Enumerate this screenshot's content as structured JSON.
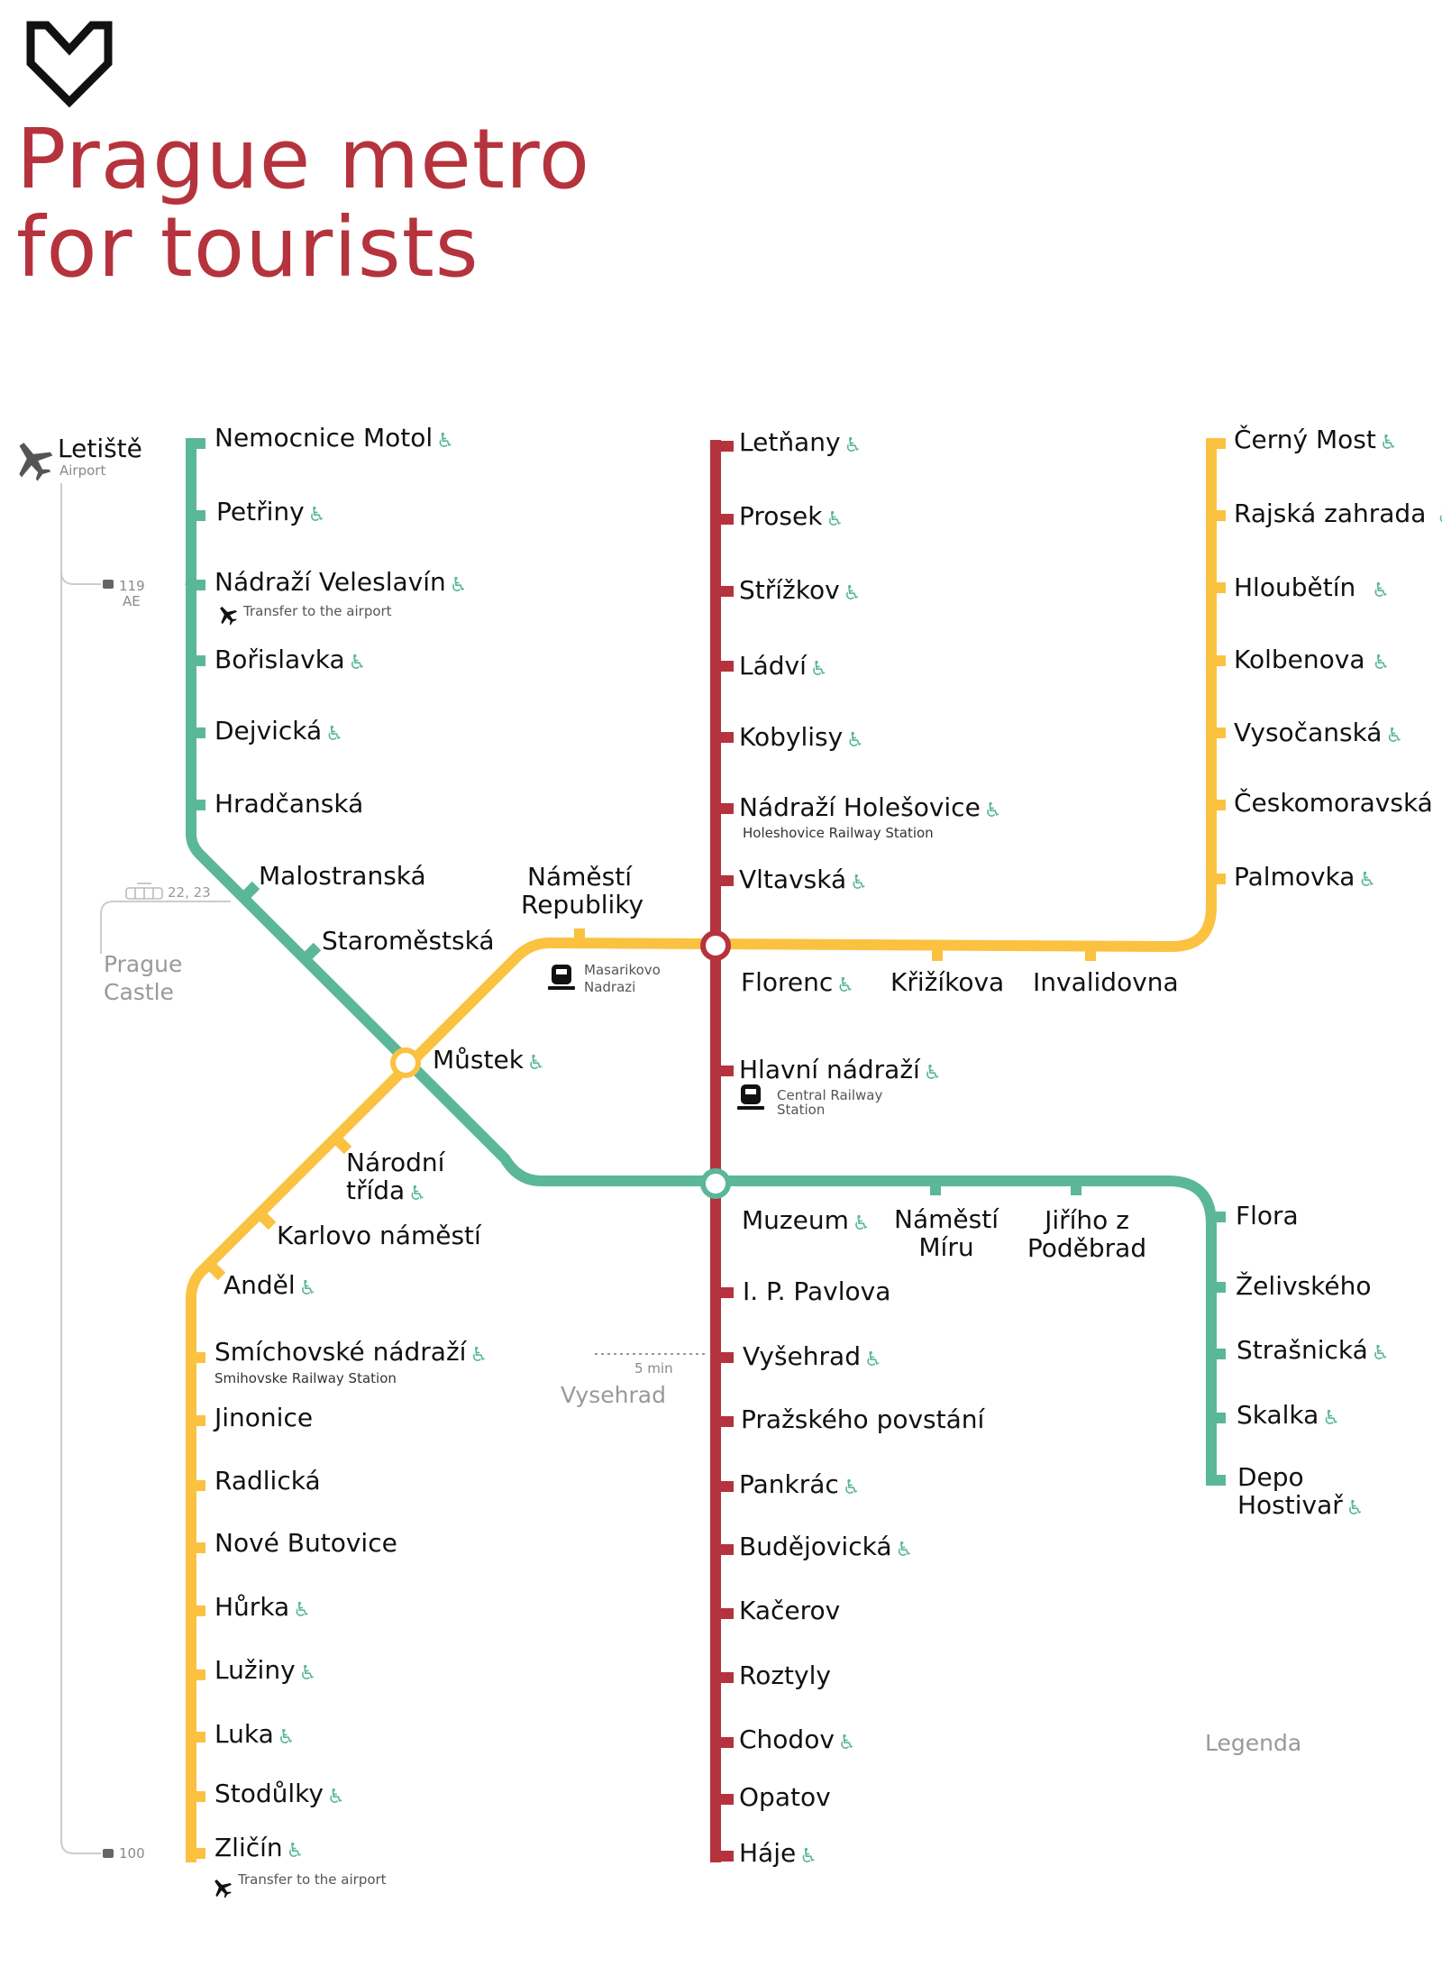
{
  "title": {
    "line1": "Prague metro",
    "line2": "for tourists"
  },
  "colors": {
    "green": "#5bb79a",
    "red": "#b5333c",
    "yellow": "#fbc140",
    "title": "#b5333c"
  },
  "accessibility_icon": "wheelchair-icon",
  "airport": {
    "name": "Letiště",
    "sub": "Airport",
    "bus_top": "119",
    "bus_top_sub": "AE",
    "bus_bottom": "100"
  },
  "castle": {
    "tram": "22, 23",
    "line1": "Prague",
    "line2": "Castle"
  },
  "vysehrad_walk": {
    "time": "5 min",
    "name": "Vysehrad"
  },
  "transfers": {
    "veleslavin": "Transfer to the airport",
    "zlicin": "Transfer to the airport",
    "holesovice": "Holeshovice Railway Station",
    "masarykovo_1": "Masarikovo",
    "masarykovo_2": "Nadrazi",
    "central_1": "Central Railway",
    "central_2": "Station",
    "smichov": "Smihovske Railway Station"
  },
  "legend": "Legenda",
  "stations": {
    "motol": "Nemocnice Motol",
    "petriny": "Petřiny",
    "veleslavin": "Nádraží Veleslavín",
    "borislavka": "Bořislavka",
    "dejvicka": "Dejvická",
    "hradcanska": "Hradčanská",
    "malostranska": "Malostranská",
    "staromestska": "Staroměstská",
    "mustek": "Můstek",
    "narodni_1": "Národní",
    "narodni_2": "třída",
    "karlovo": "Karlovo náměstí",
    "andel": "Anděl",
    "smichovske": "Smíchovské nádraží",
    "jinonice": "Jinonice",
    "radlicka": "Radlická",
    "butovice": "Nové Butovice",
    "hurka": "Hůrka",
    "luziny": "Lužiny",
    "luka": "Luka",
    "stodulky": "Stodůlky",
    "zlicin": "Zličín",
    "republiky_1": "Náměstí",
    "republiky_2": "Republiky",
    "letnany": "Letňany",
    "prosek": "Prosek",
    "strizkov": "Střížkov",
    "ladvi": "Ládví",
    "kobylisy": "Kobylisy",
    "holesovice": "Nádraží Holešovice",
    "vltavska": "Vltavská",
    "florenc": "Florenc",
    "krizikova": "Křižíkova",
    "invalidovna": "Invalidovna",
    "hlavni": "Hlavní nádraží",
    "muzeum": "Muzeum",
    "miru_1": "Náměstí",
    "miru_2": "Míru",
    "jiriho_1": "Jiřího z",
    "jiriho_2": "Poděbrad",
    "pavlova": "I. P. Pavlova",
    "vysehrad": "Vyšehrad",
    "povstani": "Pražského povstání",
    "pankrac": "Pankrác",
    "budejovicka": "Budějovická",
    "kacerov": "Kačerov",
    "roztyly": "Roztyly",
    "chodov": "Chodov",
    "opatov": "Opatov",
    "haje": "Háje",
    "cerny_most": "Černý Most",
    "rajska": "Rajská zahrada",
    "hloubetin": "Hloubětín",
    "kolbenova": "Kolbenova",
    "vysocanska": "Vysočanská",
    "ceskomoravska": "Českomoravská",
    "palmovka": "Palmovka",
    "flora": "Flora",
    "zelivskeho": "Želivského",
    "strasnicka": "Strašnická",
    "skalka": "Skalka",
    "depo_1": "Depo",
    "depo_2": "Hostivař"
  }
}
